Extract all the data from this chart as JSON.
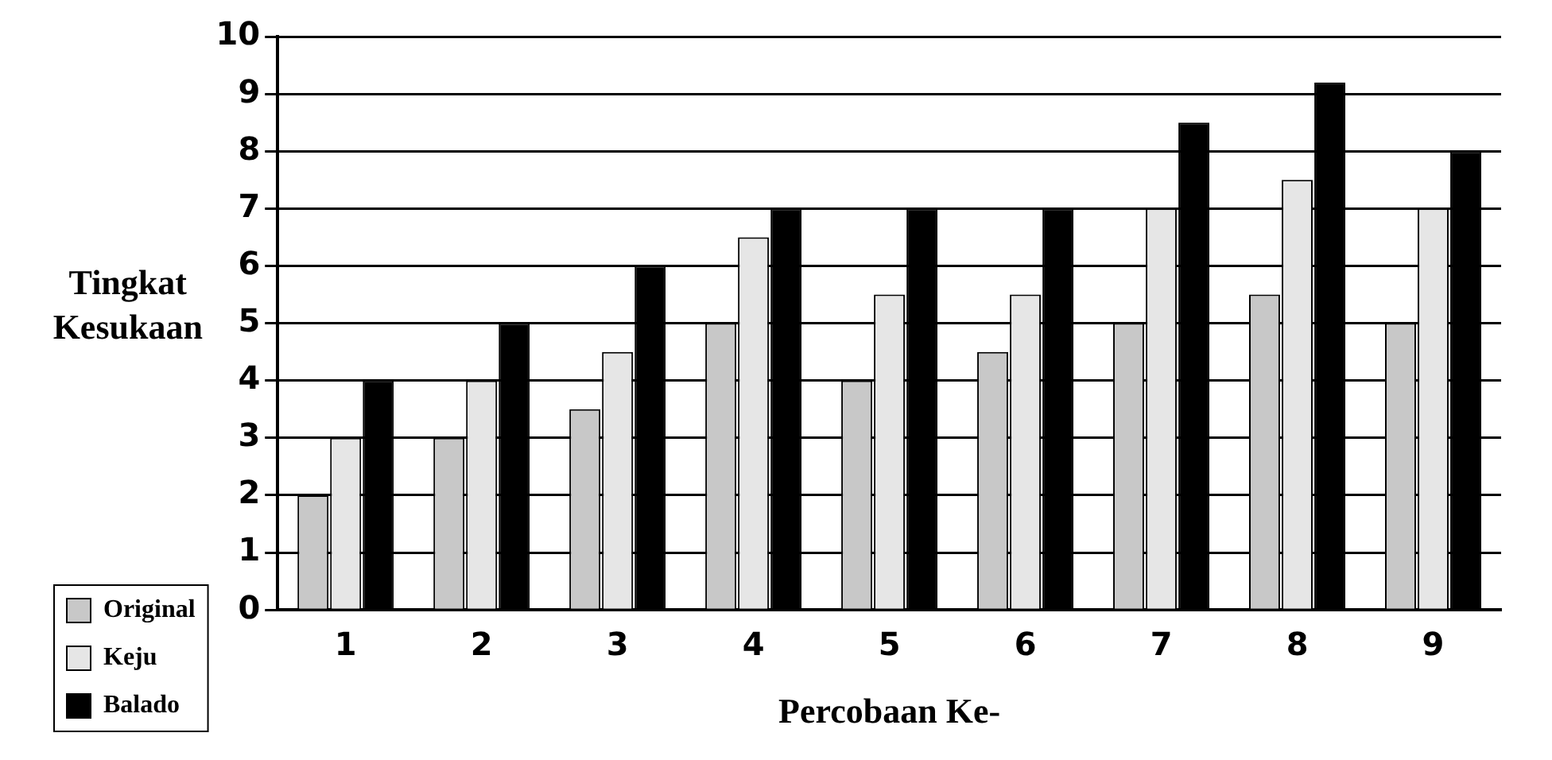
{
  "chart_data": {
    "type": "bar",
    "xlabel": "Percobaan Ke-",
    "ylabel": "Tingkat Kesukaan",
    "categories": [
      "1",
      "2",
      "3",
      "4",
      "5",
      "6",
      "7",
      "8",
      "9"
    ],
    "series": [
      {
        "name": "Original",
        "color": "#c8c8c8",
        "values": [
          2,
          3,
          3.5,
          5,
          4,
          4.5,
          5,
          5.5,
          5
        ]
      },
      {
        "name": "Keju",
        "color": "#e6e6e6",
        "values": [
          3,
          4,
          4.5,
          6.5,
          5.5,
          5.5,
          7,
          7.5,
          7
        ]
      },
      {
        "name": "Balado",
        "color": "#000000",
        "values": [
          4,
          5,
          6,
          7,
          7,
          7,
          8.5,
          9.2,
          8
        ]
      }
    ],
    "ylim": [
      0,
      10
    ],
    "yticks": [
      0,
      1,
      2,
      3,
      4,
      5,
      6,
      7,
      8,
      9,
      10
    ],
    "grid": "y",
    "legend": "bottom left"
  }
}
